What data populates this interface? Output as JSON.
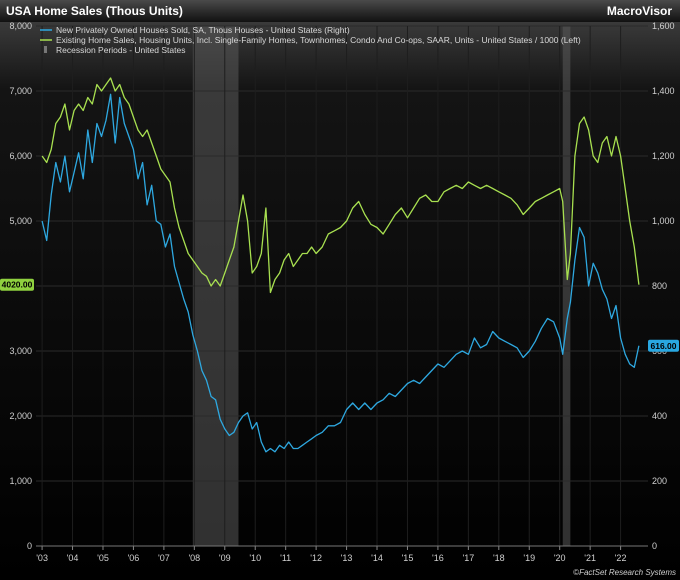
{
  "header": {
    "title": "USA Home Sales (Thous Units)",
    "brand": "MacroVisor"
  },
  "source": "©FactSet Research Systems",
  "chart_data": {
    "type": "line",
    "x_range": [
      2002.8,
      2022.9
    ],
    "xticks": [
      {
        "label": "'03",
        "x": 2003.0
      },
      {
        "label": "'04",
        "x": 2004.0
      },
      {
        "label": "'05",
        "x": 2005.0
      },
      {
        "label": "'06",
        "x": 2006.0
      },
      {
        "label": "'07",
        "x": 2007.0
      },
      {
        "label": "'08",
        "x": 2008.0
      },
      {
        "label": "'09",
        "x": 2009.0
      },
      {
        "label": "'10",
        "x": 2010.0
      },
      {
        "label": "'11",
        "x": 2011.0
      },
      {
        "label": "'12",
        "x": 2012.0
      },
      {
        "label": "'13",
        "x": 2013.0
      },
      {
        "label": "'14",
        "x": 2014.0
      },
      {
        "label": "'15",
        "x": 2015.0
      },
      {
        "label": "'16",
        "x": 2016.0
      },
      {
        "label": "'17",
        "x": 2017.0
      },
      {
        "label": "'18",
        "x": 2018.0
      },
      {
        "label": "'19",
        "x": 2019.0
      },
      {
        "label": "'20",
        "x": 2020.0
      },
      {
        "label": "'21",
        "x": 2021.0
      },
      {
        "label": "'22",
        "x": 2022.0
      }
    ],
    "left_axis": {
      "range": [
        0,
        8000
      ],
      "ticks": [
        "0",
        "1,000",
        "2,000",
        "3,000",
        "4,000",
        "5,000",
        "6,000",
        "7,000",
        "8,000"
      ],
      "tick_values": [
        0,
        1000,
        2000,
        3000,
        4000,
        5000,
        6000,
        7000,
        8000
      ]
    },
    "right_axis": {
      "range": [
        0,
        1600
      ],
      "ticks": [
        "0",
        "200",
        "400",
        "600",
        "800",
        "1,000",
        "1,200",
        "1,400",
        "1,600"
      ],
      "tick_values": [
        0,
        200,
        400,
        600,
        800,
        1000,
        1200,
        1400,
        1600
      ]
    },
    "recessions": [
      {
        "start": 2007.95,
        "end": 2009.45
      },
      {
        "start": 2020.1,
        "end": 2020.35
      }
    ],
    "legend": [
      {
        "label": "New Privately Owned Houses Sold, SA, Thous Houses - United States",
        "axis_tag": "(Right)",
        "color": "#2ea8e0"
      },
      {
        "label": "Existing Home Sales, Housing Units, Incl. Single-Family Homes, Townhomes, Condo And Co-ops, SAAR, Units - United States / 1000",
        "axis_tag": "(Left)",
        "color": "#a8e050"
      },
      {
        "label": "Recession Periods - United States",
        "axis_tag": "",
        "color": "#777777"
      }
    ],
    "flags": [
      {
        "label": "4020.00",
        "axis": "left",
        "value": 4020,
        "color": "#8fd13f"
      },
      {
        "label": "616.00",
        "axis": "right",
        "value": 616,
        "color": "#29a7e1"
      }
    ],
    "series": [
      {
        "name": "New Privately Owned Houses Sold, SA, Thous Houses - United States",
        "axis": "right",
        "color": "#2ea8e0",
        "x": [
          2003.0,
          2003.15,
          2003.3,
          2003.45,
          2003.6,
          2003.75,
          2003.9,
          2004.05,
          2004.2,
          2004.35,
          2004.5,
          2004.65,
          2004.8,
          2004.95,
          2005.1,
          2005.25,
          2005.4,
          2005.55,
          2005.7,
          2005.85,
          2006.0,
          2006.15,
          2006.3,
          2006.45,
          2006.6,
          2006.75,
          2006.9,
          2007.05,
          2007.2,
          2007.35,
          2007.5,
          2007.65,
          2007.8,
          2007.95,
          2008.1,
          2008.25,
          2008.4,
          2008.55,
          2008.7,
          2008.85,
          2009.0,
          2009.15,
          2009.3,
          2009.45,
          2009.6,
          2009.75,
          2009.9,
          2010.05,
          2010.2,
          2010.35,
          2010.5,
          2010.65,
          2010.8,
          2010.95,
          2011.1,
          2011.25,
          2011.4,
          2011.55,
          2011.7,
          2011.85,
          2012.0,
          2012.2,
          2012.4,
          2012.6,
          2012.8,
          2013.0,
          2013.2,
          2013.4,
          2013.6,
          2013.8,
          2014.0,
          2014.2,
          2014.4,
          2014.6,
          2014.8,
          2015.0,
          2015.2,
          2015.4,
          2015.6,
          2015.8,
          2016.0,
          2016.2,
          2016.4,
          2016.6,
          2016.8,
          2017.0,
          2017.2,
          2017.4,
          2017.6,
          2017.8,
          2018.0,
          2018.2,
          2018.4,
          2018.6,
          2018.8,
          2019.0,
          2019.2,
          2019.4,
          2019.6,
          2019.8,
          2020.0,
          2020.1,
          2020.25,
          2020.35,
          2020.5,
          2020.65,
          2020.8,
          2020.95,
          2021.1,
          2021.25,
          2021.4,
          2021.55,
          2021.7,
          2021.85,
          2022.0,
          2022.15,
          2022.3,
          2022.45,
          2022.6
        ],
        "values": [
          1000,
          940,
          1080,
          1180,
          1120,
          1200,
          1090,
          1150,
          1210,
          1130,
          1280,
          1180,
          1300,
          1260,
          1310,
          1390,
          1240,
          1380,
          1300,
          1260,
          1220,
          1130,
          1180,
          1050,
          1110,
          1000,
          990,
          920,
          960,
          860,
          810,
          760,
          720,
          650,
          600,
          540,
          510,
          460,
          450,
          390,
          360,
          340,
          350,
          380,
          400,
          410,
          360,
          380,
          320,
          290,
          300,
          290,
          310,
          300,
          320,
          300,
          300,
          310,
          320,
          330,
          340,
          350,
          370,
          370,
          380,
          420,
          440,
          420,
          440,
          420,
          440,
          450,
          470,
          460,
          480,
          500,
          510,
          500,
          520,
          540,
          560,
          550,
          570,
          590,
          600,
          590,
          640,
          610,
          620,
          660,
          640,
          630,
          620,
          610,
          580,
          600,
          630,
          670,
          700,
          690,
          640,
          590,
          700,
          750,
          880,
          980,
          950,
          800,
          870,
          840,
          790,
          760,
          700,
          740,
          640,
          590,
          560,
          550,
          616
        ]
      },
      {
        "name": "Existing Home Sales, Housing Units, Incl. Single-Family Homes, Townhomes, Condo And Co-ops, SAAR, Units - United States / 1000",
        "axis": "left",
        "color": "#a8e050",
        "x": [
          2003.0,
          2003.15,
          2003.3,
          2003.45,
          2003.6,
          2003.75,
          2003.9,
          2004.05,
          2004.2,
          2004.35,
          2004.5,
          2004.65,
          2004.8,
          2004.95,
          2005.1,
          2005.25,
          2005.4,
          2005.55,
          2005.7,
          2005.85,
          2006.0,
          2006.15,
          2006.3,
          2006.45,
          2006.6,
          2006.75,
          2006.9,
          2007.05,
          2007.2,
          2007.35,
          2007.5,
          2007.65,
          2007.8,
          2007.95,
          2008.1,
          2008.25,
          2008.4,
          2008.55,
          2008.7,
          2008.85,
          2009.0,
          2009.15,
          2009.3,
          2009.45,
          2009.6,
          2009.75,
          2009.9,
          2010.05,
          2010.2,
          2010.35,
          2010.5,
          2010.65,
          2010.8,
          2010.95,
          2011.1,
          2011.25,
          2011.4,
          2011.55,
          2011.7,
          2011.85,
          2012.0,
          2012.2,
          2012.4,
          2012.6,
          2012.8,
          2013.0,
          2013.2,
          2013.4,
          2013.6,
          2013.8,
          2014.0,
          2014.2,
          2014.4,
          2014.6,
          2014.8,
          2015.0,
          2015.2,
          2015.4,
          2015.6,
          2015.8,
          2016.0,
          2016.2,
          2016.4,
          2016.6,
          2016.8,
          2017.0,
          2017.2,
          2017.4,
          2017.6,
          2017.8,
          2018.0,
          2018.2,
          2018.4,
          2018.6,
          2018.8,
          2019.0,
          2019.2,
          2019.4,
          2019.6,
          2019.8,
          2020.0,
          2020.1,
          2020.25,
          2020.35,
          2020.5,
          2020.65,
          2020.8,
          2020.95,
          2021.1,
          2021.25,
          2021.4,
          2021.55,
          2021.7,
          2021.85,
          2022.0,
          2022.15,
          2022.3,
          2022.45,
          2022.6
        ],
        "values": [
          6000,
          5900,
          6100,
          6500,
          6600,
          6800,
          6400,
          6700,
          6800,
          6700,
          6900,
          6800,
          7100,
          7000,
          7100,
          7200,
          7000,
          7100,
          6900,
          6800,
          6600,
          6400,
          6300,
          6400,
          6200,
          6000,
          5800,
          5700,
          5600,
          5200,
          4900,
          4700,
          4500,
          4400,
          4300,
          4200,
          4150,
          4000,
          4100,
          4000,
          4200,
          4400,
          4600,
          5000,
          5400,
          5000,
          4200,
          4300,
          4500,
          5200,
          3900,
          4100,
          4200,
          4400,
          4500,
          4300,
          4400,
          4500,
          4500,
          4600,
          4500,
          4600,
          4800,
          4850,
          4900,
          5000,
          5200,
          5300,
          5100,
          4950,
          4900,
          4800,
          4950,
          5100,
          5200,
          5050,
          5200,
          5350,
          5400,
          5300,
          5300,
          5450,
          5500,
          5550,
          5500,
          5600,
          5550,
          5500,
          5550,
          5500,
          5450,
          5400,
          5350,
          5250,
          5100,
          5200,
          5300,
          5350,
          5400,
          5450,
          5500,
          5300,
          4100,
          4500,
          6000,
          6500,
          6600,
          6400,
          6000,
          5900,
          6200,
          6300,
          6000,
          6300,
          6000,
          5500,
          5000,
          4600,
          4020
        ]
      }
    ]
  }
}
